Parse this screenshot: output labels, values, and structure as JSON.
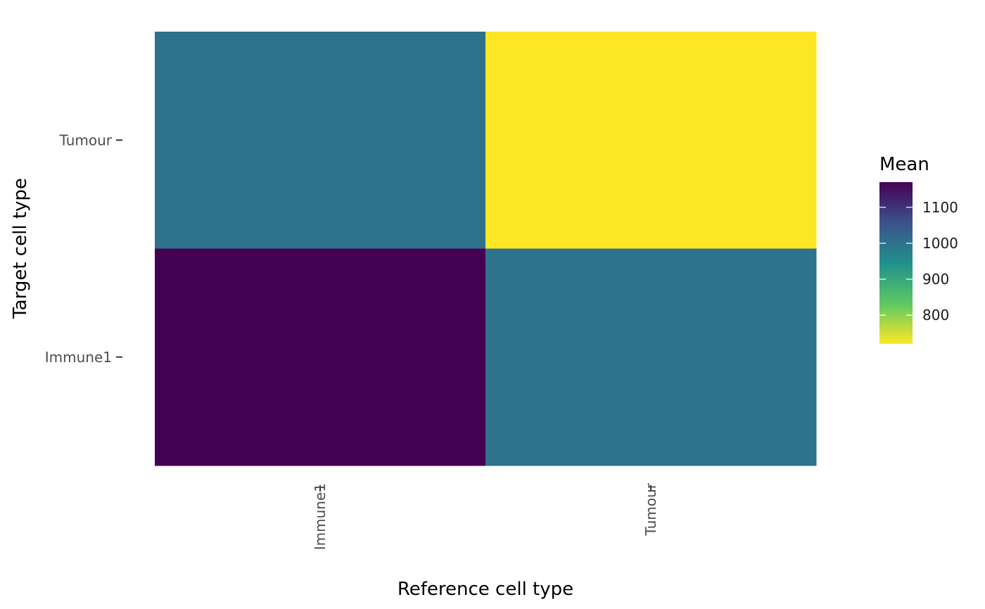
{
  "chart_data": {
    "type": "heatmap",
    "xlabel": "Reference cell type",
    "ylabel": "Target cell type",
    "x_categories": [
      "Immune1",
      "Tumour"
    ],
    "y_categories": [
      "Immune1",
      "Tumour"
    ],
    "cells": [
      {
        "x": "Immune1",
        "y": "Tumour",
        "value": 1000
      },
      {
        "x": "Tumour",
        "y": "Tumour",
        "value": 720
      },
      {
        "x": "Immune1",
        "y": "Immune1",
        "value": 1170
      },
      {
        "x": "Tumour",
        "y": "Immune1",
        "value": 1000
      }
    ],
    "legend": {
      "title": "Mean",
      "range": [
        720,
        1170
      ],
      "ticks": [
        1100,
        1000,
        900,
        800
      ],
      "placement": "right",
      "palette": "viridis (high = dark purple, low = yellow)"
    },
    "grid": false
  },
  "colors": {
    "viridis": [
      "#FDE725",
      "#5DC863",
      "#21908C",
      "#3B528B",
      "#440154"
    ]
  }
}
